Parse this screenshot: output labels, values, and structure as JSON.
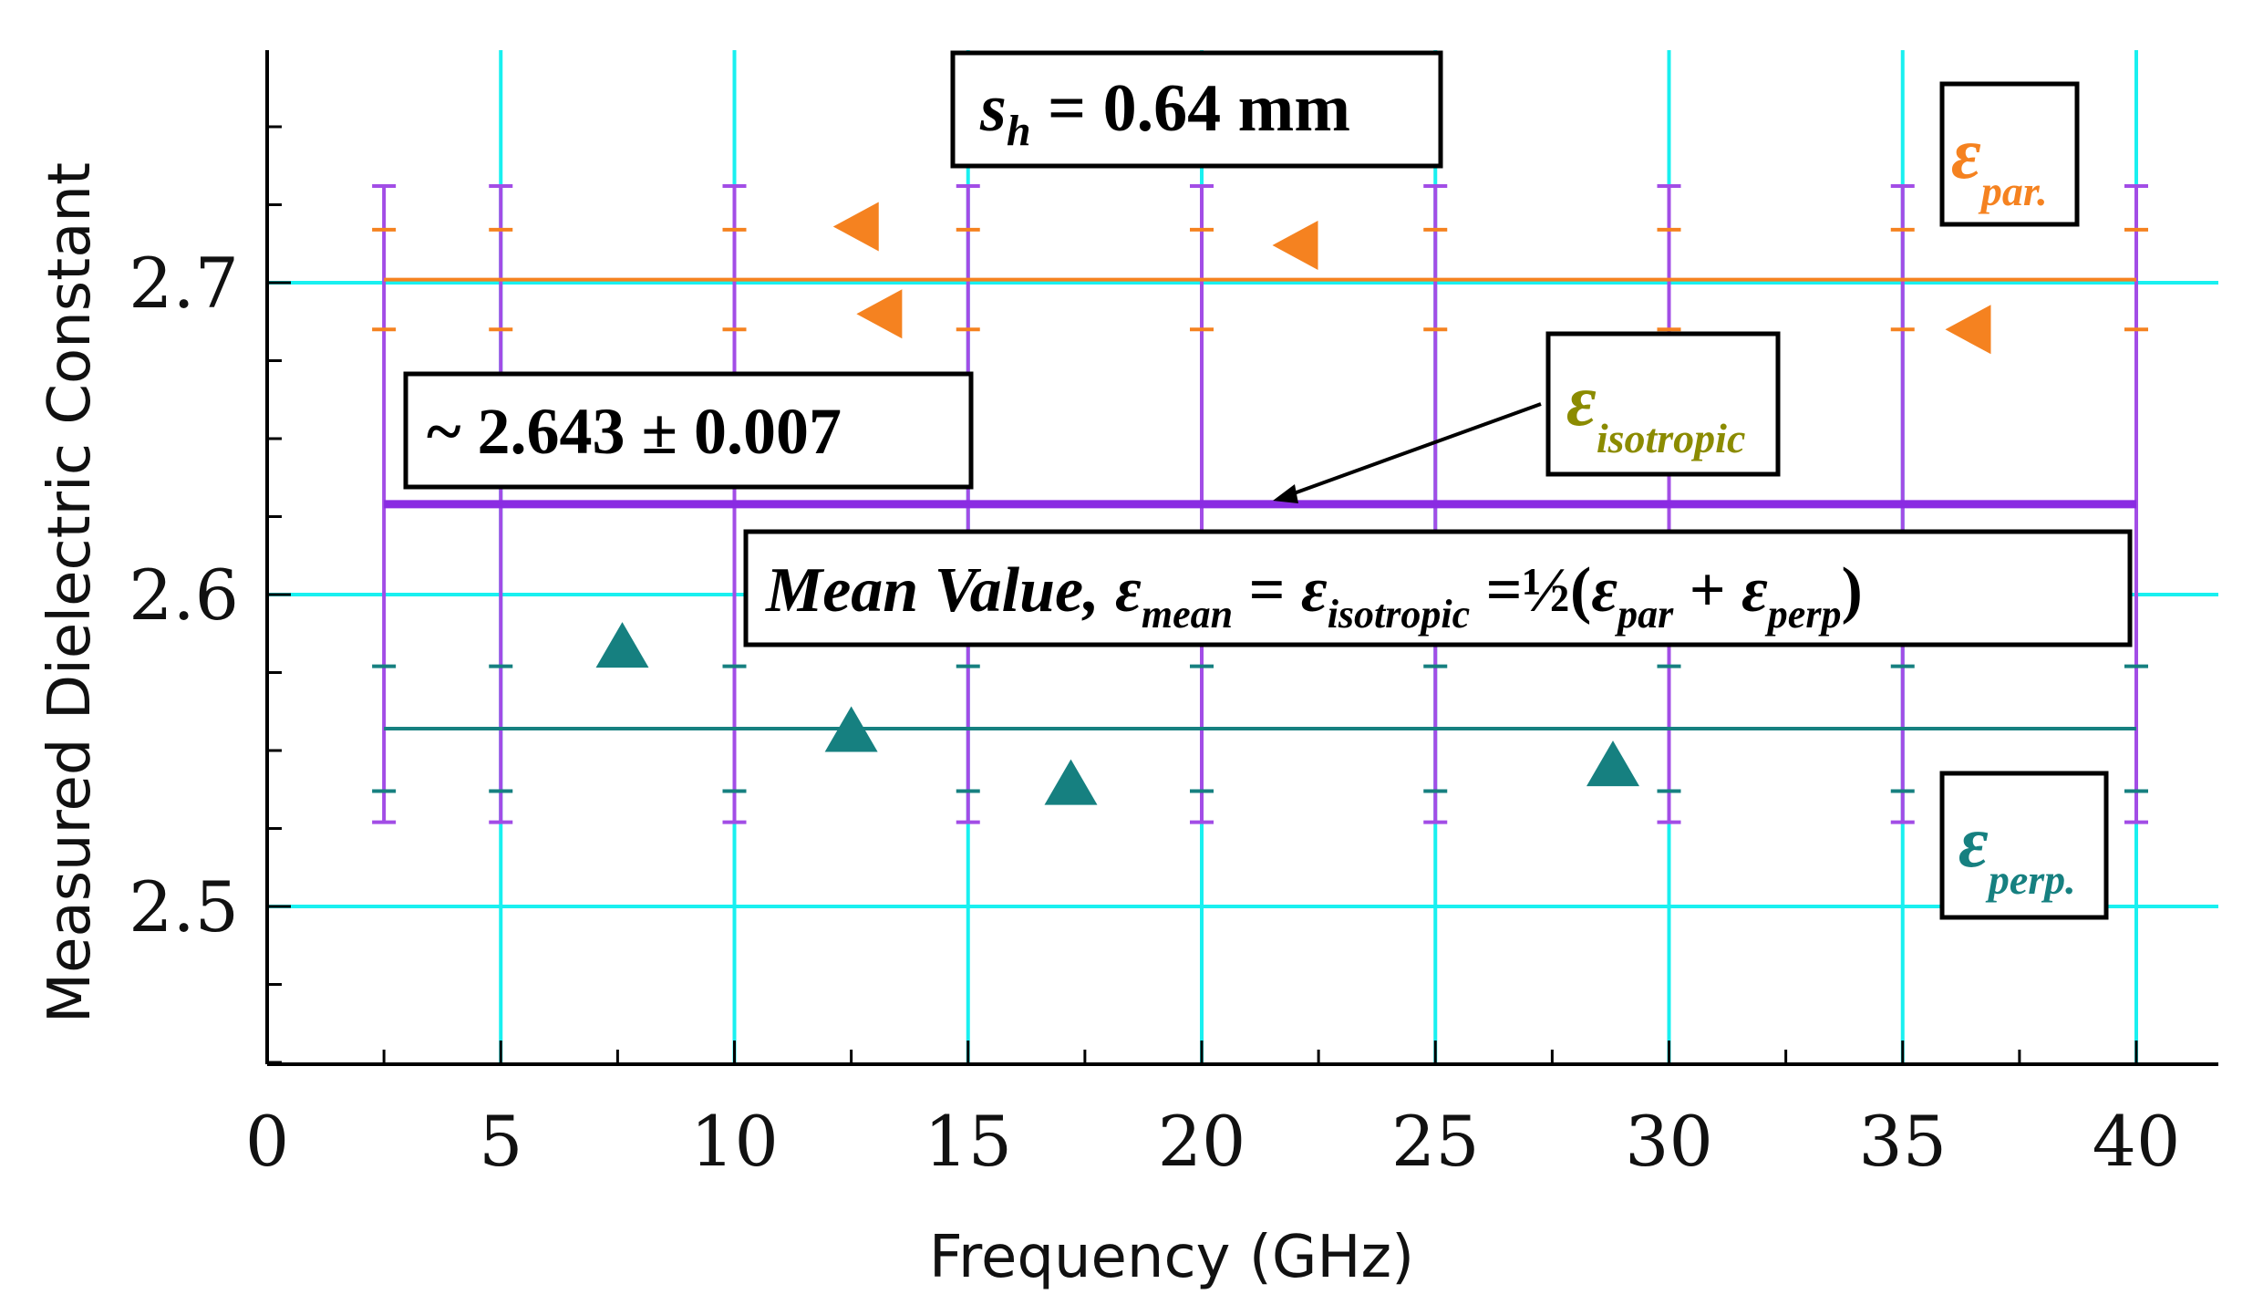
{
  "chart_data": {
    "type": "scatter",
    "title": "",
    "xlabel": "Frequency (GHz)",
    "ylabel": "Measured Dielectric Constant",
    "xlim": [
      0,
      41.5
    ],
    "ylim": [
      2.451,
      2.775
    ],
    "x_ticks": [
      {
        "value": 0,
        "label": "0"
      },
      {
        "value": 5,
        "label": "5"
      },
      {
        "value": 10,
        "label": "10"
      },
      {
        "value": 15,
        "label": "15"
      },
      {
        "value": 20,
        "label": "20"
      },
      {
        "value": 25,
        "label": "25"
      },
      {
        "value": 30,
        "label": "30"
      },
      {
        "value": 35,
        "label": "35"
      },
      {
        "value": 40,
        "label": "40"
      }
    ],
    "y_ticks": [
      {
        "value": 2.5,
        "label": "2.5"
      },
      {
        "value": 2.6,
        "label": "2.6"
      },
      {
        "value": 2.7,
        "label": "2.7"
      }
    ],
    "grid": true,
    "series": [
      {
        "name": "epsilon_par",
        "marker": "triangle-left",
        "color": "#f58220",
        "points": [
          {
            "x": 12.6,
            "y": 2.718
          },
          {
            "x": 13.1,
            "y": 2.69
          },
          {
            "x": 22.0,
            "y": 2.712
          },
          {
            "x": 36.4,
            "y": 2.685
          }
        ],
        "mean_line": {
          "y": 2.701,
          "x_range": [
            2.5,
            40
          ]
        }
      },
      {
        "name": "epsilon_perp",
        "marker": "triangle-up",
        "color": "#168080",
        "points": [
          {
            "x": 7.6,
            "y": 2.583
          },
          {
            "x": 12.5,
            "y": 2.556
          },
          {
            "x": 17.2,
            "y": 2.539
          },
          {
            "x": 28.8,
            "y": 2.545
          }
        ],
        "mean_line": {
          "y": 2.557,
          "x_range": [
            2.5,
            40
          ]
        }
      },
      {
        "name": "epsilon_isotropic",
        "color": "#8a2be2",
        "mean_line": {
          "y": 2.629,
          "x_range": [
            2.5,
            40
          ]
        }
      }
    ],
    "error_bars": {
      "x_positions": [
        2.5,
        5,
        10,
        15,
        20,
        25,
        30,
        35,
        40
      ],
      "outer": [
        2.527,
        2.731
      ],
      "par_caps": [
        2.685,
        2.717
      ],
      "perp_caps": [
        2.537,
        2.577
      ],
      "color": "#a24de6"
    },
    "annotations": {
      "sh_box": {
        "text": "s",
        "sub": "h",
        "rest": " = 0.64 mm"
      },
      "value_box": {
        "text": "~ 2.643 ± 0.007"
      },
      "eps_par": {
        "symbol": "ε",
        "sub": "par."
      },
      "eps_perp": {
        "symbol": "ε",
        "sub": "perp."
      },
      "eps_iso": {
        "symbol": "ε",
        "sub": "isotropic"
      },
      "mean_box": {
        "lead": "Mean Value, ",
        "eps": "ε",
        "sub_mean": "mean",
        "eq1": " = ",
        "sub_iso": "isotropic",
        "eq2": " =½(",
        "sub_par": "par",
        "plus": " + ",
        "sub_perp": "perp",
        "close": ")"
      }
    },
    "colors": {
      "grid": "#19f0f0",
      "par": "#f58220",
      "perp": "#168080",
      "iso": "#8a2be2",
      "iso_label": "#8b8b00",
      "errbar": "#a24de6"
    }
  }
}
